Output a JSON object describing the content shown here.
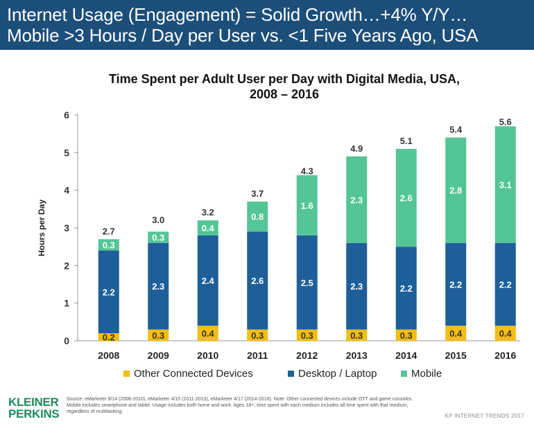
{
  "header": {
    "line1": "Internet Usage (Engagement) = Solid Growth…+4% Y/Y…",
    "line2": "Mobile >3 Hours / Day per User vs. <1 Five Years Ago, USA"
  },
  "colors": {
    "header_bg": "#1c4e7a",
    "other_devices": "#f3bd12",
    "desktop": "#1e5f99",
    "mobile": "#54c596",
    "logo": "#1d8a5a"
  },
  "chart_data": {
    "type": "bar",
    "stacked": true,
    "title_line1": "Time Spent per Adult User per Day with Digital Media, USA,",
    "title_line2": "2008 – 2016",
    "xlabel": "",
    "ylabel": "Hours per Day",
    "ylim": [
      0,
      6
    ],
    "yticks": [
      "0",
      "1",
      "2",
      "3",
      "4",
      "5",
      "6"
    ],
    "categories": [
      "2008",
      "2009",
      "2010",
      "2011",
      "2012",
      "2013",
      "2014",
      "2015",
      "2016"
    ],
    "series": [
      {
        "name": "Other Connected Devices",
        "color": "#f3bd12",
        "values": [
          0.2,
          0.3,
          0.4,
          0.3,
          0.3,
          0.3,
          0.3,
          0.4,
          0.4
        ],
        "labels": [
          "0.2",
          "0.3",
          "0.4",
          "0.3",
          "0.3",
          "0.3",
          "0.3",
          "0.4",
          "0.4"
        ]
      },
      {
        "name": "Desktop / Laptop",
        "color": "#1e5f99",
        "values": [
          2.2,
          2.3,
          2.4,
          2.6,
          2.5,
          2.3,
          2.2,
          2.2,
          2.2
        ],
        "labels": [
          "2.2",
          "2.3",
          "2.4",
          "2.6",
          "2.5",
          "2.3",
          "2.2",
          "2.2",
          "2.2"
        ]
      },
      {
        "name": "Mobile",
        "color": "#54c596",
        "values": [
          0.3,
          0.3,
          0.4,
          0.8,
          1.6,
          2.3,
          2.6,
          2.8,
          3.1
        ],
        "labels": [
          "0.3",
          "0.3",
          "0.4",
          "0.8",
          "1.6",
          "2.3",
          "2.6",
          "2.8",
          "3.1"
        ]
      }
    ],
    "totals": [
      2.7,
      3.0,
      3.2,
      3.7,
      4.3,
      4.9,
      5.1,
      5.4,
      5.6
    ],
    "total_labels": [
      "2.7",
      "3.0",
      "3.2",
      "3.7",
      "4.3",
      "4.9",
      "5.1",
      "5.4",
      "5.6"
    ],
    "legend": [
      "Other Connected Devices",
      "Desktop / Laptop",
      "Mobile"
    ]
  },
  "footer": {
    "logo_line1": "KLEINER",
    "logo_line2": "PERKINS",
    "source": "Source: eMarketer 9/14 (2008-2010), eMarketer 4/15 (2011-2013), eMarketer 4/17 (2014-2016). Note: Other connected devices include OTT and game consoles. Mobile includes smartphone and tablet. Usage includes both home and work. Ages 18+; time spent with each medium includes all time spent with that medium, regardless of multitasking.",
    "brand": "KP INTERNET TRENDS 2017"
  }
}
